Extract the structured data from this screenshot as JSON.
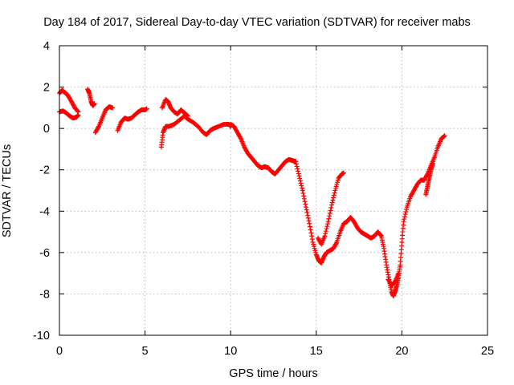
{
  "chart_data": {
    "type": "scatter",
    "title": "Day 184 of 2017, Sidereal Day-to-day VTEC variation (SDTVAR) for receiver mabs",
    "xlabel": "GPS time / hours",
    "ylabel": "SDTVAR / TECUs",
    "xlim": [
      0,
      25
    ],
    "ylim": [
      -10,
      4
    ],
    "xticks": [
      0,
      5,
      10,
      15,
      20,
      25
    ],
    "yticks": [
      -10,
      -8,
      -6,
      -4,
      -2,
      0,
      2,
      4
    ],
    "grid": true,
    "marker": "+",
    "color": "#ff0000",
    "series": [
      {
        "values": [
          [
            0.0,
            1.7
          ],
          [
            0.15,
            1.85
          ],
          [
            0.3,
            1.75
          ],
          [
            0.5,
            1.6
          ],
          [
            0.7,
            1.3
          ],
          [
            0.9,
            1.0
          ],
          [
            1.1,
            0.8
          ]
        ]
      },
      {
        "values": [
          [
            0.0,
            0.8
          ],
          [
            0.2,
            0.85
          ],
          [
            0.4,
            0.75
          ],
          [
            0.6,
            0.6
          ],
          [
            0.8,
            0.5
          ],
          [
            1.0,
            0.55
          ],
          [
            1.1,
            0.65
          ]
        ]
      },
      {
        "values": [
          [
            1.65,
            1.9
          ],
          [
            1.75,
            1.7
          ],
          [
            1.85,
            1.3
          ],
          [
            1.95,
            1.1
          ],
          [
            2.05,
            1.2
          ]
        ]
      },
      {
        "values": [
          [
            2.1,
            -0.2
          ],
          [
            2.3,
            0.1
          ],
          [
            2.5,
            0.5
          ],
          [
            2.7,
            0.9
          ],
          [
            2.9,
            1.05
          ],
          [
            3.1,
            1.0
          ]
        ]
      },
      {
        "values": [
          [
            3.4,
            -0.1
          ],
          [
            3.6,
            0.3
          ],
          [
            3.8,
            0.5
          ],
          [
            4.0,
            0.45
          ],
          [
            4.2,
            0.5
          ],
          [
            4.4,
            0.65
          ],
          [
            4.6,
            0.8
          ],
          [
            4.8,
            0.9
          ],
          [
            5.0,
            0.9
          ],
          [
            5.1,
            0.95
          ]
        ]
      },
      {
        "values": [
          [
            5.95,
            -0.9
          ],
          [
            6.05,
            -0.2
          ],
          [
            6.2,
            0.1
          ],
          [
            6.4,
            0.1
          ],
          [
            6.7,
            0.2
          ],
          [
            7.0,
            0.4
          ],
          [
            7.3,
            0.6
          ],
          [
            7.5,
            0.45
          ],
          [
            7.8,
            0.3
          ],
          [
            8.1,
            0.1
          ],
          [
            8.4,
            -0.2
          ],
          [
            8.6,
            -0.3
          ],
          [
            8.8,
            -0.1
          ],
          [
            9.0,
            0.0
          ],
          [
            9.3,
            0.1
          ],
          [
            9.6,
            0.2
          ],
          [
            9.9,
            0.2
          ],
          [
            10.0,
            0.1
          ]
        ]
      },
      {
        "values": [
          [
            6.0,
            1.0
          ],
          [
            6.2,
            1.4
          ],
          [
            6.35,
            1.3
          ],
          [
            6.5,
            1.0
          ],
          [
            6.7,
            0.8
          ],
          [
            6.9,
            0.7
          ],
          [
            7.1,
            0.9
          ],
          [
            7.3,
            0.75
          ],
          [
            7.5,
            0.6
          ]
        ]
      },
      {
        "values": [
          [
            10.0,
            0.2
          ],
          [
            10.2,
            0.1
          ],
          [
            10.4,
            -0.2
          ],
          [
            10.6,
            -0.5
          ],
          [
            10.8,
            -0.9
          ],
          [
            11.0,
            -1.2
          ],
          [
            11.2,
            -1.4
          ],
          [
            11.4,
            -1.6
          ],
          [
            11.6,
            -1.8
          ],
          [
            11.8,
            -1.9
          ],
          [
            12.0,
            -1.85
          ],
          [
            12.2,
            -1.9
          ],
          [
            12.4,
            -2.1
          ],
          [
            12.6,
            -2.2
          ],
          [
            12.8,
            -2.0
          ],
          [
            13.0,
            -1.8
          ],
          [
            13.2,
            -1.6
          ],
          [
            13.4,
            -1.5
          ],
          [
            13.6,
            -1.55
          ],
          [
            13.8,
            -1.6
          ]
        ]
      },
      {
        "values": [
          [
            13.8,
            -1.6
          ],
          [
            14.0,
            -2.3
          ],
          [
            14.2,
            -3.0
          ],
          [
            14.4,
            -3.8
          ],
          [
            14.6,
            -4.6
          ],
          [
            14.8,
            -5.5
          ],
          [
            15.0,
            -6.1
          ],
          [
            15.15,
            -6.4
          ],
          [
            15.3,
            -6.5
          ],
          [
            15.45,
            -6.2
          ],
          [
            15.6,
            -6.0
          ],
          [
            15.8,
            -5.9
          ],
          [
            16.0,
            -5.8
          ],
          [
            16.2,
            -5.5
          ],
          [
            16.4,
            -5.0
          ],
          [
            16.6,
            -4.6
          ],
          [
            16.8,
            -4.5
          ],
          [
            17.0,
            -4.3
          ],
          [
            17.2,
            -4.5
          ],
          [
            17.4,
            -4.8
          ],
          [
            17.6,
            -5.0
          ],
          [
            17.8,
            -5.1
          ],
          [
            18.0,
            -5.2
          ],
          [
            18.2,
            -5.3
          ],
          [
            18.4,
            -5.2
          ],
          [
            18.6,
            -5.0
          ],
          [
            18.8,
            -5.2
          ],
          [
            18.95,
            -5.8
          ],
          [
            19.1,
            -6.6
          ],
          [
            19.25,
            -7.3
          ],
          [
            19.4,
            -7.9
          ],
          [
            19.5,
            -8.1
          ],
          [
            19.6,
            -7.9
          ],
          [
            19.7,
            -7.6
          ],
          [
            19.8,
            -7.2
          ],
          [
            19.9,
            -6.6
          ],
          [
            20.0,
            -5.5
          ],
          [
            20.1,
            -4.5
          ],
          [
            20.3,
            -3.8
          ],
          [
            20.5,
            -3.3
          ],
          [
            20.7,
            -3.0
          ],
          [
            20.9,
            -2.7
          ],
          [
            21.1,
            -2.5
          ],
          [
            21.3,
            -2.5
          ],
          [
            21.5,
            -2.2
          ],
          [
            21.7,
            -1.8
          ],
          [
            21.9,
            -1.4
          ],
          [
            22.1,
            -0.9
          ],
          [
            22.3,
            -0.5
          ],
          [
            22.5,
            -0.35
          ]
        ]
      },
      {
        "values": [
          [
            15.1,
            -5.3
          ],
          [
            15.3,
            -5.6
          ],
          [
            15.5,
            -5.2
          ],
          [
            15.7,
            -4.5
          ],
          [
            15.9,
            -3.7
          ],
          [
            16.1,
            -3.0
          ],
          [
            16.3,
            -2.4
          ],
          [
            16.5,
            -2.2
          ],
          [
            16.6,
            -2.15
          ]
        ]
      },
      {
        "values": [
          [
            19.2,
            -7.3
          ],
          [
            19.4,
            -7.6
          ],
          [
            19.6,
            -7.4
          ],
          [
            19.8,
            -7.0
          ]
        ]
      },
      {
        "values": [
          [
            21.4,
            -3.2
          ],
          [
            21.5,
            -2.8
          ],
          [
            21.6,
            -2.4
          ],
          [
            21.7,
            -2.0
          ],
          [
            21.8,
            -1.7
          ]
        ]
      }
    ]
  }
}
